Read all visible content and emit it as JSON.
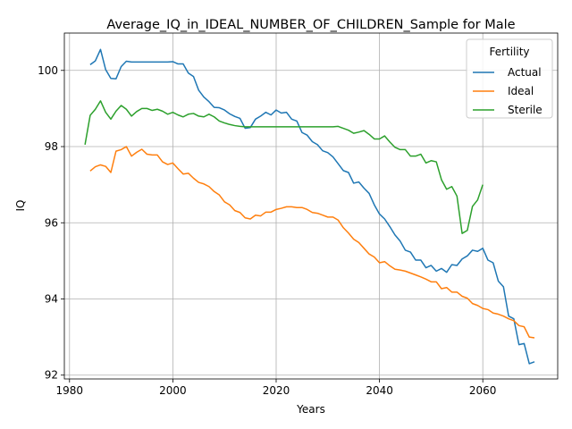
{
  "chart_data": {
    "type": "line",
    "title": "Average_IQ_in_IDEAL_NUMBER_OF_CHILDREN_Sample for Male",
    "xlabel": "Years",
    "ylabel": "IQ",
    "xlim": [
      1979,
      2074.5
    ],
    "ylim": [
      91.9,
      100.98
    ],
    "xticks": [
      1980,
      2000,
      2020,
      2040,
      2060
    ],
    "yticks": [
      92,
      94,
      96,
      98,
      100
    ],
    "grid": true,
    "legend": {
      "title": "Fertility",
      "position": "top-right"
    },
    "series": [
      {
        "name": "Actual",
        "color": "#1f77b4",
        "points": [
          [
            1984,
            100.15
          ],
          [
            1985,
            100.25
          ],
          [
            1986,
            100.55
          ],
          [
            1987,
            100.02
          ],
          [
            1988,
            99.79
          ],
          [
            1989,
            99.78
          ],
          [
            1990,
            100.1
          ],
          [
            1991,
            100.24
          ],
          [
            1992,
            100.22
          ],
          [
            1993,
            100.22
          ],
          [
            1994,
            100.22
          ],
          [
            1995,
            100.22
          ],
          [
            1996,
            100.22
          ],
          [
            1997,
            100.22
          ],
          [
            1998,
            100.22
          ],
          [
            1999,
            100.22
          ],
          [
            2000,
            100.23
          ],
          [
            2001,
            100.17
          ],
          [
            2002,
            100.17
          ],
          [
            2003,
            99.93
          ],
          [
            2004,
            99.84
          ],
          [
            2005,
            99.48
          ],
          [
            2006,
            99.3
          ],
          [
            2007,
            99.18
          ],
          [
            2008,
            99.03
          ],
          [
            2009,
            99.02
          ],
          [
            2010,
            98.96
          ],
          [
            2011,
            98.86
          ],
          [
            2012,
            98.79
          ],
          [
            2013,
            98.74
          ],
          [
            2014,
            98.48
          ],
          [
            2015,
            98.5
          ],
          [
            2016,
            98.72
          ],
          [
            2017,
            98.8
          ],
          [
            2018,
            98.9
          ],
          [
            2019,
            98.83
          ],
          [
            2020,
            98.96
          ],
          [
            2021,
            98.88
          ],
          [
            2022,
            98.9
          ],
          [
            2023,
            98.72
          ],
          [
            2024,
            98.67
          ],
          [
            2025,
            98.37
          ],
          [
            2026,
            98.3
          ],
          [
            2027,
            98.13
          ],
          [
            2028,
            98.05
          ],
          [
            2029,
            97.89
          ],
          [
            2030,
            97.84
          ],
          [
            2031,
            97.73
          ],
          [
            2032,
            97.55
          ],
          [
            2033,
            97.37
          ],
          [
            2034,
            97.32
          ],
          [
            2035,
            97.04
          ],
          [
            2036,
            97.07
          ],
          [
            2037,
            96.91
          ],
          [
            2038,
            96.77
          ],
          [
            2039,
            96.47
          ],
          [
            2040,
            96.23
          ],
          [
            2041,
            96.1
          ],
          [
            2042,
            95.9
          ],
          [
            2043,
            95.68
          ],
          [
            2044,
            95.52
          ],
          [
            2045,
            95.28
          ],
          [
            2046,
            95.23
          ],
          [
            2047,
            95.02
          ],
          [
            2048,
            95.02
          ],
          [
            2049,
            94.82
          ],
          [
            2050,
            94.88
          ],
          [
            2051,
            94.73
          ],
          [
            2052,
            94.8
          ],
          [
            2053,
            94.7
          ],
          [
            2054,
            94.9
          ],
          [
            2055,
            94.88
          ],
          [
            2056,
            95.05
          ],
          [
            2057,
            95.13
          ],
          [
            2058,
            95.28
          ],
          [
            2059,
            95.25
          ],
          [
            2060,
            95.33
          ],
          [
            2061,
            95.02
          ],
          [
            2062,
            94.95
          ],
          [
            2063,
            94.47
          ],
          [
            2064,
            94.32
          ],
          [
            2065,
            93.55
          ],
          [
            2066,
            93.48
          ],
          [
            2067,
            92.8
          ],
          [
            2068,
            92.83
          ],
          [
            2069,
            92.3
          ],
          [
            2070,
            92.35
          ]
        ]
      },
      {
        "name": "Ideal",
        "color": "#ff7f0e",
        "points": [
          [
            1984,
            97.36
          ],
          [
            1985,
            97.47
          ],
          [
            1986,
            97.52
          ],
          [
            1987,
            97.48
          ],
          [
            1988,
            97.32
          ],
          [
            1989,
            97.88
          ],
          [
            1990,
            97.92
          ],
          [
            1991,
            98.0
          ],
          [
            1992,
            97.75
          ],
          [
            1993,
            97.85
          ],
          [
            1994,
            97.93
          ],
          [
            1995,
            97.8
          ],
          [
            1996,
            97.78
          ],
          [
            1997,
            97.78
          ],
          [
            1998,
            97.6
          ],
          [
            1999,
            97.53
          ],
          [
            2000,
            97.57
          ],
          [
            2001,
            97.42
          ],
          [
            2002,
            97.28
          ],
          [
            2003,
            97.3
          ],
          [
            2004,
            97.17
          ],
          [
            2005,
            97.06
          ],
          [
            2006,
            97.02
          ],
          [
            2007,
            96.95
          ],
          [
            2008,
            96.82
          ],
          [
            2009,
            96.73
          ],
          [
            2010,
            96.55
          ],
          [
            2011,
            96.47
          ],
          [
            2012,
            96.32
          ],
          [
            2013,
            96.27
          ],
          [
            2014,
            96.13
          ],
          [
            2015,
            96.1
          ],
          [
            2016,
            96.2
          ],
          [
            2017,
            96.18
          ],
          [
            2018,
            96.28
          ],
          [
            2019,
            96.28
          ],
          [
            2020,
            96.35
          ],
          [
            2021,
            96.38
          ],
          [
            2022,
            96.42
          ],
          [
            2023,
            96.42
          ],
          [
            2024,
            96.4
          ],
          [
            2025,
            96.4
          ],
          [
            2026,
            96.35
          ],
          [
            2027,
            96.27
          ],
          [
            2028,
            96.25
          ],
          [
            2029,
            96.2
          ],
          [
            2030,
            96.15
          ],
          [
            2031,
            96.15
          ],
          [
            2032,
            96.07
          ],
          [
            2033,
            95.87
          ],
          [
            2034,
            95.73
          ],
          [
            2035,
            95.57
          ],
          [
            2036,
            95.48
          ],
          [
            2037,
            95.33
          ],
          [
            2038,
            95.18
          ],
          [
            2039,
            95.1
          ],
          [
            2040,
            94.95
          ],
          [
            2041,
            94.98
          ],
          [
            2042,
            94.87
          ],
          [
            2043,
            94.78
          ],
          [
            2044,
            94.76
          ],
          [
            2045,
            94.73
          ],
          [
            2046,
            94.68
          ],
          [
            2047,
            94.63
          ],
          [
            2048,
            94.58
          ],
          [
            2049,
            94.52
          ],
          [
            2050,
            94.45
          ],
          [
            2051,
            94.45
          ],
          [
            2052,
            94.27
          ],
          [
            2053,
            94.3
          ],
          [
            2054,
            94.18
          ],
          [
            2055,
            94.18
          ],
          [
            2056,
            94.07
          ],
          [
            2057,
            94.02
          ],
          [
            2058,
            93.88
          ],
          [
            2059,
            93.83
          ],
          [
            2060,
            93.75
          ],
          [
            2061,
            93.72
          ],
          [
            2062,
            93.63
          ],
          [
            2063,
            93.6
          ],
          [
            2064,
            93.55
          ],
          [
            2065,
            93.48
          ],
          [
            2066,
            93.43
          ],
          [
            2067,
            93.3
          ],
          [
            2068,
            93.27
          ],
          [
            2069,
            93.0
          ],
          [
            2070,
            92.98
          ]
        ]
      },
      {
        "name": "Sterile",
        "color": "#2ca02c",
        "points": [
          [
            1983,
            98.05
          ],
          [
            1984,
            98.82
          ],
          [
            1985,
            98.98
          ],
          [
            1986,
            99.2
          ],
          [
            1987,
            98.9
          ],
          [
            1988,
            98.72
          ],
          [
            1989,
            98.93
          ],
          [
            1990,
            99.08
          ],
          [
            1991,
            98.98
          ],
          [
            1992,
            98.8
          ],
          [
            1993,
            98.92
          ],
          [
            1994,
            99.0
          ],
          [
            1995,
            99.0
          ],
          [
            1996,
            98.95
          ],
          [
            1997,
            98.98
          ],
          [
            1998,
            98.93
          ],
          [
            1999,
            98.85
          ],
          [
            2000,
            98.9
          ],
          [
            2001,
            98.83
          ],
          [
            2002,
            98.78
          ],
          [
            2003,
            98.85
          ],
          [
            2004,
            98.87
          ],
          [
            2005,
            98.8
          ],
          [
            2006,
            98.78
          ],
          [
            2007,
            98.85
          ],
          [
            2008,
            98.78
          ],
          [
            2009,
            98.67
          ],
          [
            2010,
            98.62
          ],
          [
            2011,
            98.58
          ],
          [
            2012,
            98.55
          ],
          [
            2013,
            98.53
          ],
          [
            2014,
            98.52
          ],
          [
            2015,
            98.52
          ],
          [
            2016,
            98.52
          ],
          [
            2017,
            98.52
          ],
          [
            2018,
            98.52
          ],
          [
            2019,
            98.52
          ],
          [
            2020,
            98.52
          ],
          [
            2021,
            98.52
          ],
          [
            2022,
            98.52
          ],
          [
            2023,
            98.52
          ],
          [
            2024,
            98.52
          ],
          [
            2025,
            98.52
          ],
          [
            2026,
            98.52
          ],
          [
            2027,
            98.52
          ],
          [
            2028,
            98.52
          ],
          [
            2029,
            98.52
          ],
          [
            2030,
            98.52
          ],
          [
            2031,
            98.52
          ],
          [
            2032,
            98.53
          ],
          [
            2033,
            98.48
          ],
          [
            2034,
            98.43
          ],
          [
            2035,
            98.35
          ],
          [
            2036,
            98.38
          ],
          [
            2037,
            98.42
          ],
          [
            2038,
            98.32
          ],
          [
            2039,
            98.2
          ],
          [
            2040,
            98.2
          ],
          [
            2041,
            98.28
          ],
          [
            2042,
            98.12
          ],
          [
            2043,
            97.98
          ],
          [
            2044,
            97.92
          ],
          [
            2045,
            97.92
          ],
          [
            2046,
            97.75
          ],
          [
            2047,
            97.75
          ],
          [
            2048,
            97.8
          ],
          [
            2049,
            97.57
          ],
          [
            2050,
            97.63
          ],
          [
            2051,
            97.6
          ],
          [
            2052,
            97.13
          ],
          [
            2053,
            96.88
          ],
          [
            2054,
            96.95
          ],
          [
            2055,
            96.7
          ],
          [
            2056,
            95.72
          ],
          [
            2057,
            95.8
          ],
          [
            2058,
            96.43
          ],
          [
            2059,
            96.6
          ],
          [
            2060,
            97.0
          ]
        ]
      }
    ]
  }
}
